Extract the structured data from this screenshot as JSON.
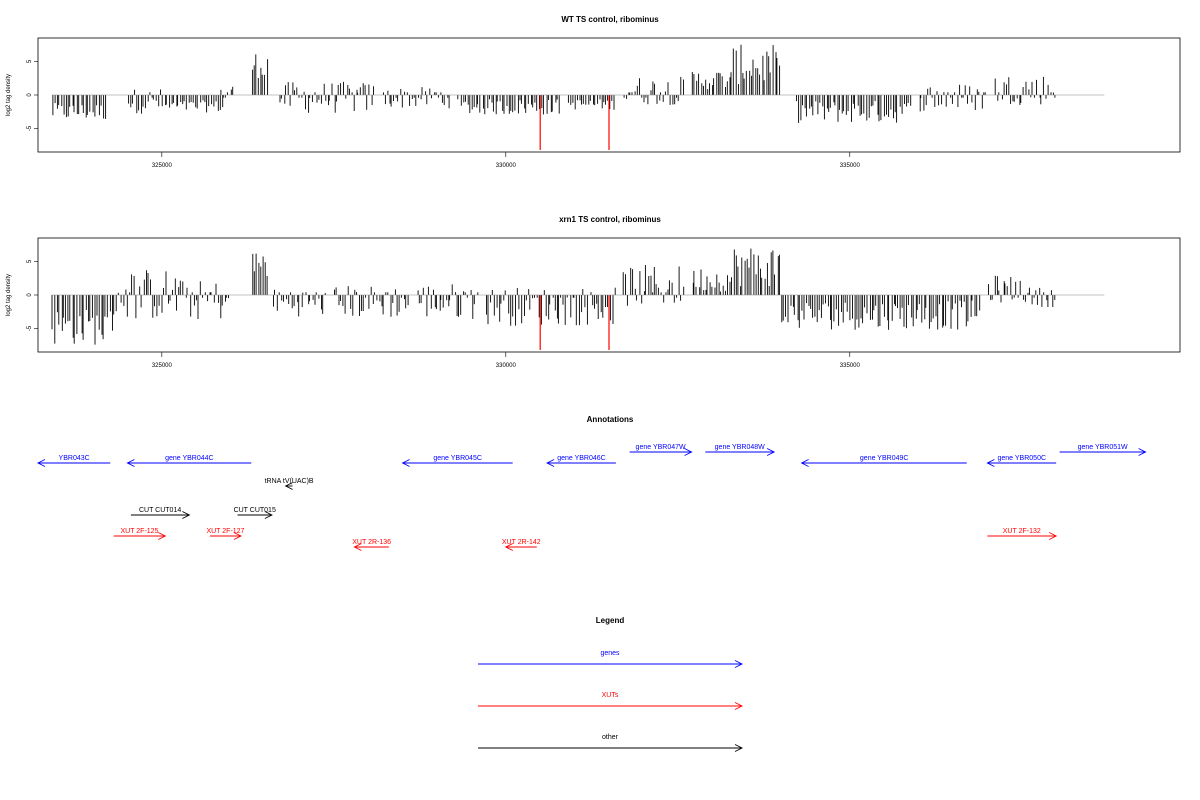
{
  "colors": {
    "gene": "#0000ff",
    "xut": "#ff0000",
    "other": "#000000",
    "highlight": "#ff0000"
  },
  "chart_data": [
    {
      "type": "bar",
      "title": "WT TS control, ribominus",
      "ylabel": "log2 tag density",
      "xlim": [
        323200,
        339800
      ],
      "ylim": [
        -8.5,
        8.5
      ],
      "xticks": [
        325000,
        330000,
        335000
      ],
      "yticks": [
        -5,
        0,
        5
      ],
      "highlight_x": [
        330500,
        331500
      ],
      "highlight_y": -8.2,
      "regions": [
        {
          "from": 323400,
          "to": 324200,
          "min": -3.8,
          "max": -1.2
        },
        {
          "from": 324500,
          "to": 325000,
          "min": -2.8,
          "max": 1.0
        },
        {
          "from": 325000,
          "to": 325900,
          "min": -2.6,
          "max": -0.8
        },
        {
          "from": 325850,
          "to": 326050,
          "min": -1.5,
          "max": 1.8
        },
        {
          "from": 326300,
          "to": 326550,
          "min": 2.5,
          "max": 6.5
        },
        {
          "from": 326700,
          "to": 328100,
          "min": -2.8,
          "max": 2.0
        },
        {
          "from": 328200,
          "to": 329200,
          "min": -2.0,
          "max": 1.2
        },
        {
          "from": 329300,
          "to": 330800,
          "min": -3.0,
          "max": -0.6
        },
        {
          "from": 330900,
          "to": 331600,
          "min": -2.2,
          "max": -0.6
        },
        {
          "from": 331700,
          "to": 332600,
          "min": -1.5,
          "max": 2.8
        },
        {
          "from": 332700,
          "to": 333300,
          "min": 0.8,
          "max": 3.8
        },
        {
          "from": 333300,
          "to": 334000,
          "min": 1.5,
          "max": 7.5
        },
        {
          "from": 334200,
          "to": 335900,
          "min": -4.2,
          "max": -0.8
        },
        {
          "from": 336000,
          "to": 337000,
          "min": -2.5,
          "max": 1.8
        },
        {
          "from": 337100,
          "to": 338000,
          "min": -1.5,
          "max": 3.2
        }
      ]
    },
    {
      "type": "bar",
      "title": "xrn1 TS control, ribominus",
      "ylabel": "log2 tag density",
      "xlim": [
        323200,
        339800
      ],
      "ylim": [
        -8.5,
        8.5
      ],
      "xticks": [
        325000,
        330000,
        335000
      ],
      "yticks": [
        -5,
        0,
        5
      ],
      "highlight_x": [
        330500,
        331500
      ],
      "highlight_y": -8.2,
      "regions": [
        {
          "from": 323400,
          "to": 324300,
          "min": -7.5,
          "max": -2.0
        },
        {
          "from": 324300,
          "to": 325300,
          "min": -3.8,
          "max": 4.0
        },
        {
          "from": 325300,
          "to": 326000,
          "min": -3.8,
          "max": 2.2
        },
        {
          "from": 326300,
          "to": 326550,
          "min": 2.5,
          "max": 6.8
        },
        {
          "from": 326600,
          "to": 327400,
          "min": -3.2,
          "max": 1.0
        },
        {
          "from": 327500,
          "to": 328600,
          "min": -3.5,
          "max": 1.5
        },
        {
          "from": 328700,
          "to": 329600,
          "min": -3.6,
          "max": 1.8
        },
        {
          "from": 329700,
          "to": 331600,
          "min": -4.6,
          "max": 1.2
        },
        {
          "from": 331700,
          "to": 332600,
          "min": -1.8,
          "max": 4.5
        },
        {
          "from": 332700,
          "to": 333300,
          "min": 0.5,
          "max": 4.2
        },
        {
          "from": 333300,
          "to": 334000,
          "min": 1.2,
          "max": 7.5
        },
        {
          "from": 334000,
          "to": 336900,
          "min": -5.2,
          "max": -0.8
        },
        {
          "from": 337000,
          "to": 337600,
          "min": -1.2,
          "max": 3.0
        },
        {
          "from": 337600,
          "to": 338000,
          "min": -1.8,
          "max": 1.2
        }
      ]
    }
  ],
  "annotations": {
    "title": "Annotations",
    "xlim": [
      323200,
      339800
    ],
    "features": [
      {
        "label": "YBR043C",
        "type": "gene",
        "from": 324250,
        "to": 323200,
        "row": 0
      },
      {
        "label": "gene YBR044C",
        "type": "gene",
        "from": 326300,
        "to": 324500,
        "row": 0
      },
      {
        "label": "gene YBR045C",
        "type": "gene",
        "from": 330100,
        "to": 328500,
        "row": 0
      },
      {
        "label": "gene YBR046C",
        "type": "gene",
        "from": 331600,
        "to": 330600,
        "row": 0
      },
      {
        "label": "gene YBR047W",
        "type": "gene",
        "from": 331800,
        "to": 332700,
        "row": -1
      },
      {
        "label": "gene YBR048W",
        "type": "gene",
        "from": 332900,
        "to": 333900,
        "row": -1
      },
      {
        "label": "gene YBR049C",
        "type": "gene",
        "from": 336700,
        "to": 334300,
        "row": 0
      },
      {
        "label": "gene YBR050C",
        "type": "gene",
        "from": 338000,
        "to": 337000,
        "row": 0
      },
      {
        "label": "gene YBR051W",
        "type": "gene",
        "from": 338050,
        "to": 339300,
        "row": -1
      },
      {
        "label": "tRNA tV(UAC)B",
        "type": "other",
        "from": 326900,
        "to": 326800,
        "row": 1
      },
      {
        "label": "CUT CUT014",
        "type": "other",
        "from": 324550,
        "to": 325400,
        "row": 2
      },
      {
        "label": "CUT CUT015",
        "type": "other",
        "from": 326100,
        "to": 326600,
        "row": 2
      },
      {
        "label": "XUT 2F-125",
        "type": "xut",
        "from": 324300,
        "to": 325050,
        "row": 3
      },
      {
        "label": "XUT 2F-127",
        "type": "xut",
        "from": 325700,
        "to": 326150,
        "row": 3
      },
      {
        "label": "XUT 2R-136",
        "type": "xut",
        "from": 328300,
        "to": 327800,
        "row": 4
      },
      {
        "label": "XUT 2R-142",
        "type": "xut",
        "from": 330450,
        "to": 330000,
        "row": 4
      },
      {
        "label": "XUT 2F-132",
        "type": "xut",
        "from": 337000,
        "to": 338000,
        "row": 3
      }
    ]
  },
  "legend": {
    "title": "Legend",
    "entries": [
      {
        "label": "genes",
        "type": "gene"
      },
      {
        "label": "XUTs",
        "type": "xut"
      },
      {
        "label": "other",
        "type": "other"
      }
    ]
  }
}
